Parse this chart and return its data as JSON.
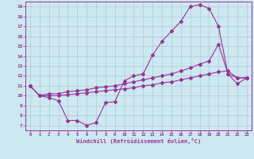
{
  "xlabel": "Windchill (Refroidissement éolien,°C)",
  "background_color": "#cce8f0",
  "line_color": "#993399",
  "xlim": [
    -0.5,
    23.5
  ],
  "ylim": [
    6.5,
    19.5
  ],
  "xticks": [
    0,
    1,
    2,
    3,
    4,
    5,
    6,
    7,
    8,
    9,
    10,
    11,
    12,
    13,
    14,
    15,
    16,
    17,
    18,
    19,
    20,
    21,
    22,
    23
  ],
  "yticks": [
    7,
    8,
    9,
    10,
    11,
    12,
    13,
    14,
    15,
    16,
    17,
    18,
    19
  ],
  "line1_x": [
    0,
    1,
    2,
    3,
    4,
    5,
    6,
    7,
    8,
    9,
    10,
    11,
    12,
    13,
    14,
    15,
    16,
    17,
    18,
    19,
    20,
    21,
    22,
    23
  ],
  "line1_y": [
    11.0,
    10.0,
    9.8,
    9.5,
    7.5,
    7.5,
    7.0,
    7.3,
    9.3,
    9.4,
    11.5,
    12.0,
    12.2,
    14.1,
    15.5,
    16.5,
    17.5,
    19.0,
    19.2,
    18.8,
    17.0,
    12.2,
    11.8,
    11.8
  ],
  "line2_x": [
    0,
    1,
    2,
    3,
    4,
    5,
    6,
    7,
    8,
    9,
    10,
    11,
    12,
    13,
    14,
    15,
    16,
    17,
    18,
    19,
    20,
    21,
    22,
    23
  ],
  "line2_y": [
    11.0,
    10.0,
    10.2,
    10.2,
    10.4,
    10.5,
    10.6,
    10.8,
    10.9,
    11.0,
    11.2,
    11.4,
    11.6,
    11.8,
    12.0,
    12.2,
    12.5,
    12.8,
    13.2,
    13.5,
    15.2,
    12.2,
    11.2,
    11.8
  ],
  "line3_x": [
    0,
    1,
    2,
    3,
    4,
    5,
    6,
    7,
    8,
    9,
    10,
    11,
    12,
    13,
    14,
    15,
    16,
    17,
    18,
    19,
    20,
    21,
    22,
    23
  ],
  "line3_y": [
    11.0,
    10.0,
    10.0,
    10.0,
    10.1,
    10.2,
    10.3,
    10.4,
    10.5,
    10.6,
    10.7,
    10.8,
    11.0,
    11.1,
    11.3,
    11.4,
    11.6,
    11.8,
    12.0,
    12.2,
    12.4,
    12.5,
    11.8,
    11.8
  ]
}
